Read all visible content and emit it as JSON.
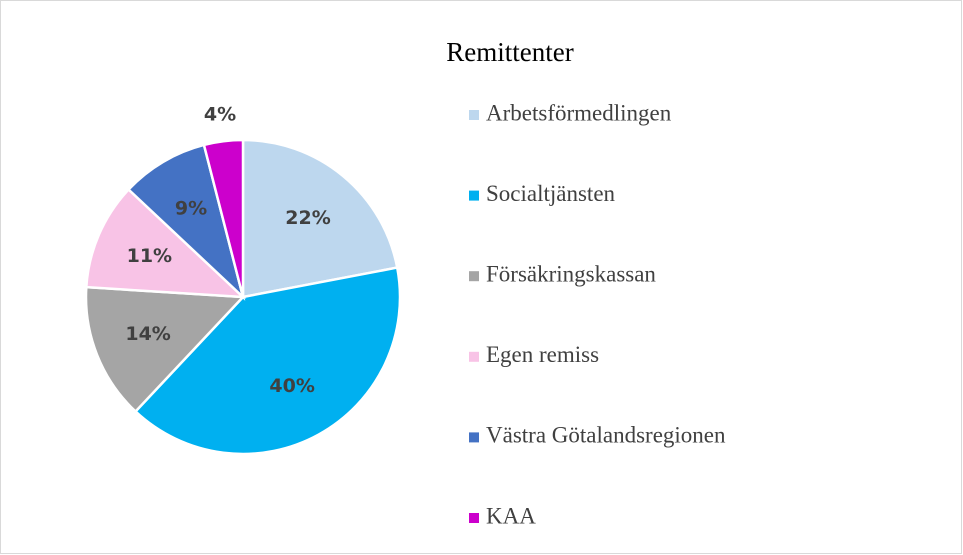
{
  "chart_data": {
    "type": "pie",
    "title": "Remittenter",
    "categories": [
      "Arbetsförmedlingen",
      "Socialtjänsten",
      "Försäkringskassan",
      "Egen remiss",
      "Västra Götalandsregionen",
      "KAA"
    ],
    "values": [
      22,
      40,
      14,
      11,
      9,
      4
    ],
    "value_labels": [
      "22%",
      "40%",
      "14%",
      "11%",
      "9%",
      "4%"
    ],
    "colors": [
      "#bdd7ee",
      "#00b0f0",
      "#a5a5a5",
      "#f8c3e6",
      "#4472c4",
      "#cc00cc"
    ],
    "legend": "right"
  }
}
